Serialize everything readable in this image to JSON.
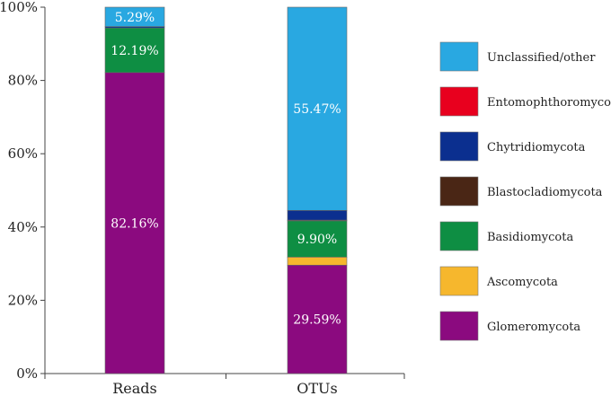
{
  "chart_data": {
    "type": "bar",
    "stacked": true,
    "categories": [
      "Reads",
      "OTUs"
    ],
    "series": [
      {
        "name": "Glomeromycota",
        "color": "#8b0a7f",
        "values": [
          82.16,
          29.59
        ]
      },
      {
        "name": "Ascomycota",
        "color": "#f6b72d",
        "values": [
          0.0,
          2.2
        ]
      },
      {
        "name": "Basidiomycota",
        "color": "#0e8e43",
        "values": [
          12.19,
          9.9
        ]
      },
      {
        "name": "Blastocladiomycota",
        "color": "#4a2615",
        "values": [
          0.0,
          0.2
        ]
      },
      {
        "name": "Chytridiomycota",
        "color": "#0b2f8f",
        "values": [
          0.36,
          2.64
        ]
      },
      {
        "name": "Entomophthoromycota",
        "color": "#e8001e",
        "values": [
          0.0,
          0.0
        ]
      },
      {
        "name": "Unclassified/other",
        "color": "#29a8e1",
        "values": [
          5.29,
          55.47
        ]
      }
    ],
    "data_labels": [
      {
        "category": "Reads",
        "series": "Glomeromycota",
        "text": "82.16%"
      },
      {
        "category": "Reads",
        "series": "Basidiomycota",
        "text": "12.19%"
      },
      {
        "category": "Reads",
        "series": "Unclassified/other",
        "text": "5.29%"
      },
      {
        "category": "OTUs",
        "series": "Glomeromycota",
        "text": "29.59%"
      },
      {
        "category": "OTUs",
        "series": "Basidiomycota",
        "text": "9.90%"
      },
      {
        "category": "OTUs",
        "series": "Unclassified/other",
        "text": "55.47%"
      }
    ],
    "y_ticks": [
      "0%",
      "20%",
      "40%",
      "60%",
      "80%",
      "100%"
    ],
    "ylim": [
      0,
      100
    ],
    "grid": false,
    "legend_order": [
      "Unclassified/other",
      "Entomophthoromycota",
      "Chytridiomycota",
      "Blastocladiomycota",
      "Basidiomycota",
      "Ascomycota",
      "Glomeromycota"
    ],
    "legend_position": "right"
  }
}
